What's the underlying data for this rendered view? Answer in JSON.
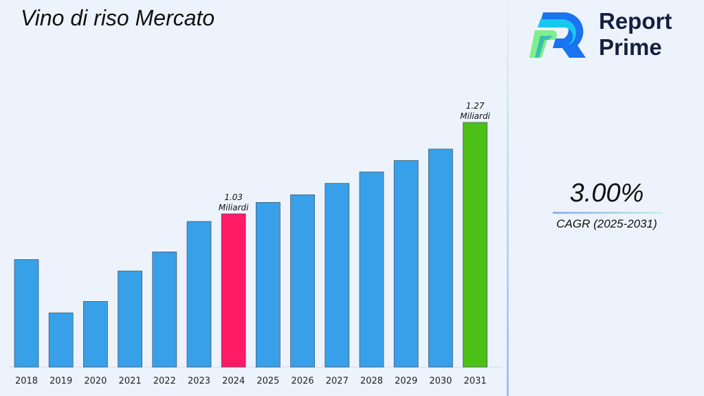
{
  "title": "Vino di riso Mercato",
  "logo": {
    "line1": "Report",
    "line2": "Prime"
  },
  "cagr": {
    "value": "3.00%",
    "label": "CAGR (2025-2031)"
  },
  "colors": {
    "bar": "#38a0e8",
    "highlight_2024": "#ff1a66",
    "highlight_2031": "#4cc016",
    "background": "#edf3fd"
  },
  "chart_data": {
    "type": "bar",
    "categories": [
      "2018",
      "2019",
      "2020",
      "2021",
      "2022",
      "2023",
      "2024",
      "2025",
      "2026",
      "2027",
      "2028",
      "2029",
      "2030",
      "2031"
    ],
    "values": [
      0.91,
      0.77,
      0.8,
      0.88,
      0.93,
      1.01,
      1.03,
      1.06,
      1.08,
      1.11,
      1.14,
      1.17,
      1.2,
      1.27
    ],
    "unit": "Miliardi",
    "data_labels": [
      {
        "category": "2024",
        "value": "1.03",
        "unit": "Miliardi"
      },
      {
        "category": "2031",
        "value": "1.27",
        "unit": "Miliardi"
      }
    ],
    "title": "Vino di riso Mercato",
    "xlabel": "",
    "ylabel": "",
    "grid": false,
    "legend": "none"
  }
}
